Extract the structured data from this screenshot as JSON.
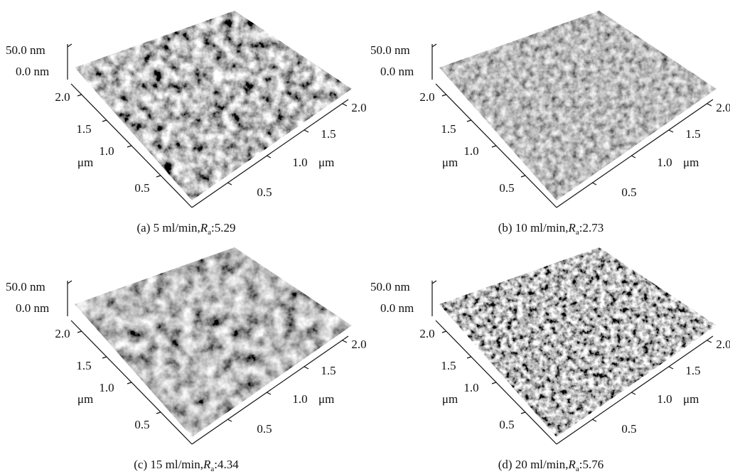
{
  "panels": [
    {
      "z_ticks": [
        "50.0 nm",
        "0.0 nm"
      ],
      "y_ticks": [
        "2.0",
        "1.5",
        "1.0",
        "0.5"
      ],
      "y_unit": "μm",
      "x_ticks": [
        "0.5",
        "1.0",
        "1.5",
        "2.0"
      ],
      "x_unit": "μm",
      "caption": {
        "label": "(a) 5 ml/min,",
        "symbol": "R",
        "subscript": "a",
        "value": ":5.29"
      }
    },
    {
      "z_ticks": [
        "50.0 nm",
        "0.0 nm"
      ],
      "y_ticks": [
        "2.0",
        "1.5",
        "1.0",
        "0.5"
      ],
      "y_unit": "μm",
      "x_ticks": [
        "0.5",
        "1.0",
        "1.5",
        "2.0"
      ],
      "x_unit": "μm",
      "caption": {
        "label": "(b) 10 ml/min,",
        "symbol": "R",
        "subscript": "a",
        "value": ":2.73"
      }
    },
    {
      "z_ticks": [
        "50.0 nm",
        "0.0 nm"
      ],
      "y_ticks": [
        "2.0",
        "1.5",
        "1.0",
        "0.5"
      ],
      "y_unit": "μm",
      "x_ticks": [
        "0.5",
        "1.0",
        "1.5",
        "2.0"
      ],
      "x_unit": "μm",
      "caption": {
        "label": "(c) 15 ml/min,",
        "symbol": "R",
        "subscript": "a",
        "value": ":4.34"
      }
    },
    {
      "z_ticks": [
        "50.0 nm",
        "0.0 nm"
      ],
      "y_ticks": [
        "2.0",
        "1.5",
        "1.0",
        "0.5"
      ],
      "y_unit": "μm",
      "x_ticks": [
        "0.5",
        "1.0",
        "1.5",
        "2.0"
      ],
      "x_unit": "μm",
      "caption": {
        "label": "(d) 20 ml/min,",
        "symbol": "R",
        "subscript": "a",
        "value": ":5.76"
      }
    }
  ]
}
